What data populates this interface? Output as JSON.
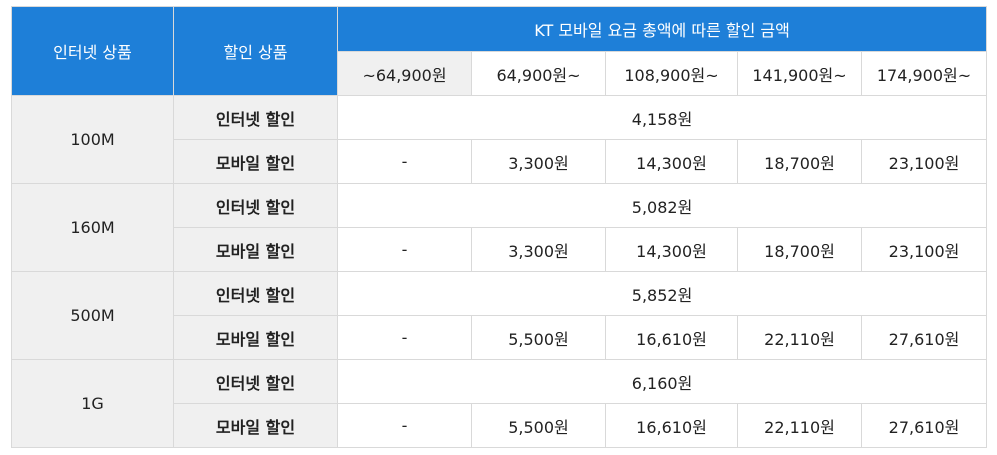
{
  "header": {
    "col_internet_product": "인터넷 상품",
    "col_discount_product": "할인 상품",
    "col_group_title": "KT 모바일 요금 총액에 따른 할인 금액",
    "tiers": [
      "~64,900원",
      "64,900원~",
      "108,900원~",
      "141,900원~",
      "174,900원~"
    ]
  },
  "rows": [
    {
      "plan": "100M",
      "internet_label": "인터넷 할인",
      "internet_value": "4,158원",
      "mobile_label": "모바일 할인",
      "mobile_values": [
        "-",
        "3,300원",
        "14,300원",
        "18,700원",
        "23,100원"
      ]
    },
    {
      "plan": "160M",
      "internet_label": "인터넷 할인",
      "internet_value": "5,082원",
      "mobile_label": "모바일 할인",
      "mobile_values": [
        "-",
        "3,300원",
        "14,300원",
        "18,700원",
        "23,100원"
      ]
    },
    {
      "plan": "500M",
      "internet_label": "인터넷 할인",
      "internet_value": "5,852원",
      "mobile_label": "모바일 할인",
      "mobile_values": [
        "-",
        "5,500원",
        "16,610원",
        "22,110원",
        "27,610원"
      ]
    },
    {
      "plan": "1G",
      "internet_label": "인터넷 할인",
      "internet_value": "6,160원",
      "mobile_label": "모바일 할인",
      "mobile_values": [
        "-",
        "5,500원",
        "16,610원",
        "22,110원",
        "27,610원"
      ]
    }
  ],
  "colors": {
    "header_bg": "#1e7fd8",
    "label_bg": "#f0f0f0",
    "border": "#d9d9d9"
  }
}
